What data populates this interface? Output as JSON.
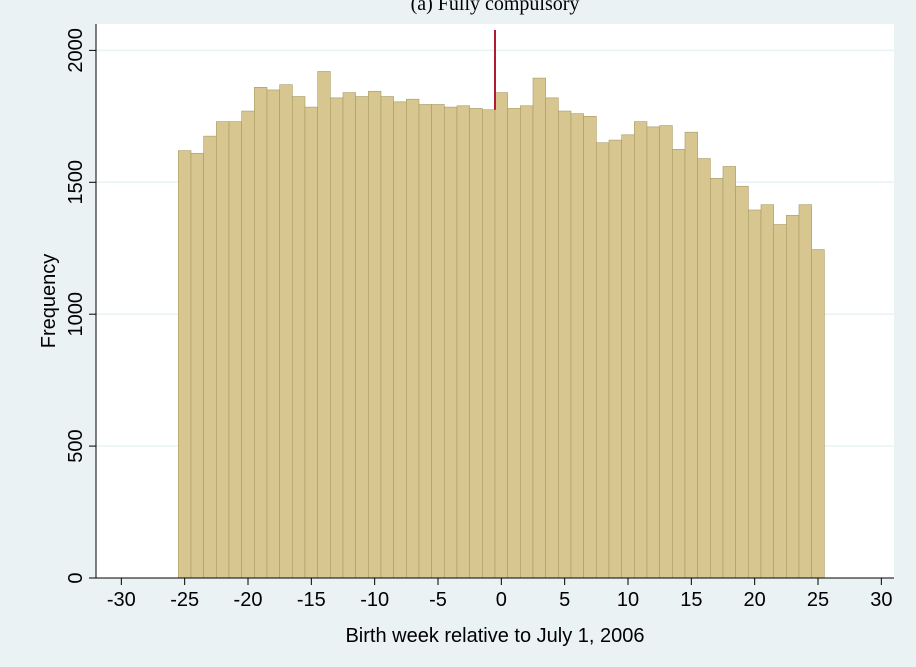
{
  "chart_data": {
    "type": "bar",
    "title": "(a) Fully compulsory",
    "xlabel": "Birth week relative to July 1, 2006",
    "ylabel": "Frequency",
    "xlim": [
      -32,
      31
    ],
    "ylim": [
      0,
      2100
    ],
    "xticks": [
      -30,
      -25,
      -20,
      -15,
      -10,
      -5,
      0,
      5,
      10,
      15,
      20,
      25,
      30
    ],
    "yticks": [
      0,
      500,
      1000,
      1500,
      2000
    ],
    "bin_width": 1,
    "grid": true,
    "legend": "none",
    "x": [
      -25,
      -24,
      -23,
      -22,
      -21,
      -20,
      -19,
      -18,
      -17,
      -16,
      -15,
      -14,
      -13,
      -12,
      -11,
      -10,
      -9,
      -8,
      -7,
      -6,
      -5,
      -4,
      -3,
      -2,
      -1,
      0,
      1,
      2,
      3,
      4,
      5,
      6,
      7,
      8,
      9,
      10,
      11,
      12,
      13,
      14,
      15,
      16,
      17,
      18,
      19,
      20,
      21,
      22,
      23,
      24,
      25
    ],
    "values": [
      1620,
      1610,
      1675,
      1730,
      1730,
      1770,
      1860,
      1850,
      1870,
      1825,
      1785,
      1920,
      1820,
      1840,
      1825,
      1845,
      1825,
      1805,
      1815,
      1795,
      1795,
      1785,
      1790,
      1780,
      1775,
      1840,
      1780,
      1790,
      1895,
      1820,
      1770,
      1760,
      1750,
      1650,
      1660,
      1680,
      1730,
      1710,
      1715,
      1625,
      1690,
      1590,
      1515,
      1560,
      1485,
      1395,
      1415,
      1340,
      1375,
      1415,
      1245
    ],
    "cutoff_x": -0.5,
    "colors": {
      "bar_fill": "#d7c68f",
      "bar_stroke": "#a89a63",
      "cutoff_line": "#b01a33",
      "plot_bg": "#ffffff",
      "outer_bg": "#eaf2f3",
      "grid": "#eaf2f3"
    }
  }
}
